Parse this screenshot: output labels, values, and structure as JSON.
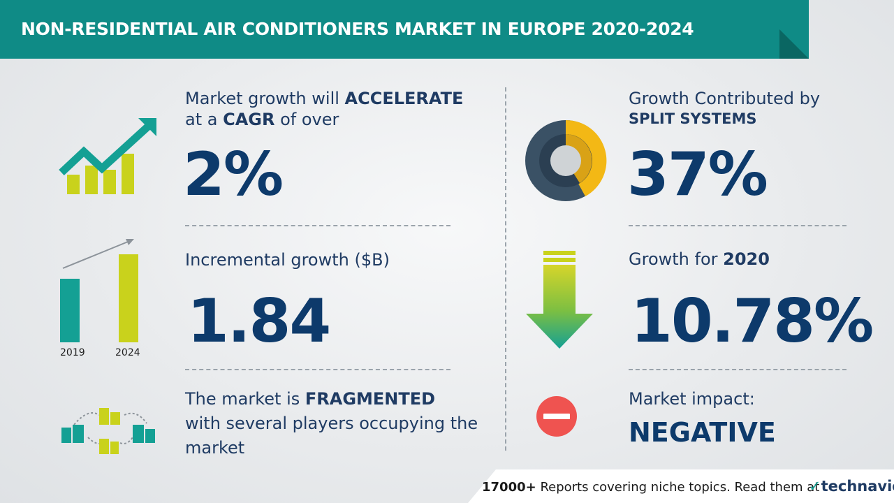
{
  "header": {
    "title": "NON-RESIDENTIAL AIR CONDITIONERS MARKET IN EUROPE 2020-2024"
  },
  "cagr": {
    "line1_prefix": "Market growth will ",
    "line1_bold": "ACCELERATE",
    "line2_prefix": "at a ",
    "line2_bold": "CAGR",
    "line2_suffix": " of over",
    "value": "2%"
  },
  "incremental": {
    "label": "Incremental growth ($B)",
    "value": "1.84",
    "year_start": "2019",
    "year_end": "2024"
  },
  "fragmented": {
    "line1_prefix": "The market is ",
    "line1_bold": "FRAGMENTED",
    "line2": "with several players occupying the",
    "line3": "market"
  },
  "segment": {
    "label": "Growth Contributed by",
    "name": "SPLIT SYSTEMS",
    "value": "37%"
  },
  "yoy": {
    "label_prefix": "Growth for ",
    "year": "2020",
    "value": "10.78%"
  },
  "impact": {
    "label": "Market impact:",
    "value": "NEGATIVE"
  },
  "footer": {
    "count": "17000+",
    "text": " Reports covering niche topics. Read them at",
    "logo": "technavio"
  },
  "colors": {
    "banner": "#0f8b86",
    "teal": "#14a094",
    "lime": "#c9d21c",
    "navy": "#0d3a6b",
    "red": "#ef5350",
    "donut_dark": "#3a5165",
    "donut_gold": "#f3b815"
  }
}
